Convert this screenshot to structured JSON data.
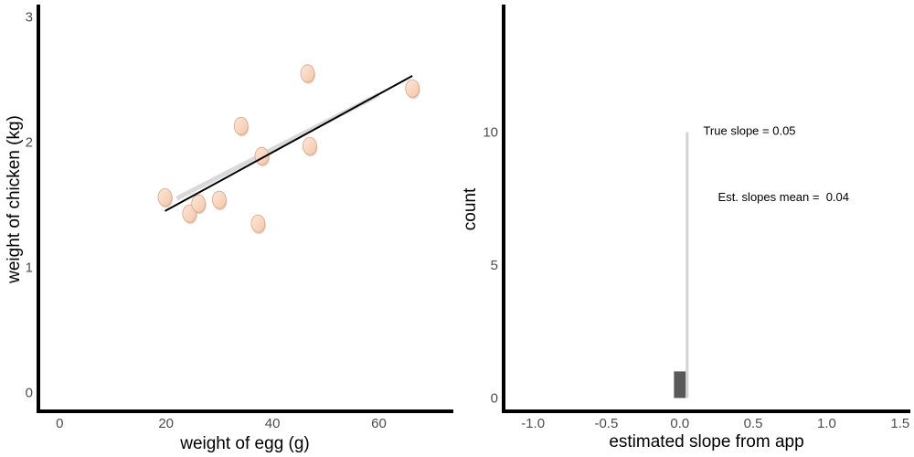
{
  "chart_data": [
    {
      "type": "scatter",
      "xlabel": "weight of egg (g)",
      "ylabel": "weight of chicken (kg)",
      "xlim": [
        -4,
        74
      ],
      "ylim": [
        -0.15,
        3.1
      ],
      "x_ticks": [
        0,
        20,
        40,
        60
      ],
      "y_ticks": [
        0,
        1,
        2,
        3
      ],
      "marker": "egg",
      "points": [
        {
          "x": 19.8,
          "y": 1.56
        },
        {
          "x": 24.4,
          "y": 1.43
        },
        {
          "x": 26.1,
          "y": 1.51
        },
        {
          "x": 30.0,
          "y": 1.54
        },
        {
          "x": 34.1,
          "y": 2.13
        },
        {
          "x": 37.3,
          "y": 1.35
        },
        {
          "x": 38.0,
          "y": 1.89
        },
        {
          "x": 46.6,
          "y": 2.55
        },
        {
          "x": 47.0,
          "y": 1.97
        },
        {
          "x": 66.3,
          "y": 2.43
        }
      ],
      "fit_line": {
        "x": [
          19.8,
          66.3
        ],
        "y": [
          1.45,
          2.53
        ]
      },
      "true_line": {
        "x": [
          22.0,
          60.0
        ],
        "y": [
          1.55,
          2.38
        ]
      },
      "grid": false,
      "colors": {
        "fit_line": "#000000",
        "true_line": "#d9d9d9",
        "egg_fill": "#f9d9c6",
        "egg_edge": "#d9a586"
      }
    },
    {
      "type": "bar",
      "xlabel": "estimated slope from app",
      "ylabel": "count",
      "xlim": [
        -1.2,
        1.57
      ],
      "ylim": [
        -0.5,
        14.8
      ],
      "x_ticks": [
        -1.0,
        -0.5,
        0.0,
        0.5,
        1.0,
        1.5
      ],
      "x_tick_labels": [
        "-1.0",
        "-0.5",
        "0.0",
        "0.5",
        "1.0",
        "1.5"
      ],
      "y_ticks": [
        0,
        5,
        10
      ],
      "bars": [
        {
          "x0": -0.04,
          "x1": 0.04,
          "count": 1
        }
      ],
      "true_slope_line": {
        "x": 0.05,
        "y0": 0,
        "y1": 10
      },
      "annotations": [
        {
          "text": "True slope = 0.05",
          "x": 0.16,
          "y": 9.9
        },
        {
          "text": "Est. slopes mean =  0.04",
          "x": 0.26,
          "y": 7.4
        }
      ],
      "grid": false,
      "colors": {
        "bar": "#595959",
        "true_slope_line": "#d3d3d3"
      }
    }
  ]
}
